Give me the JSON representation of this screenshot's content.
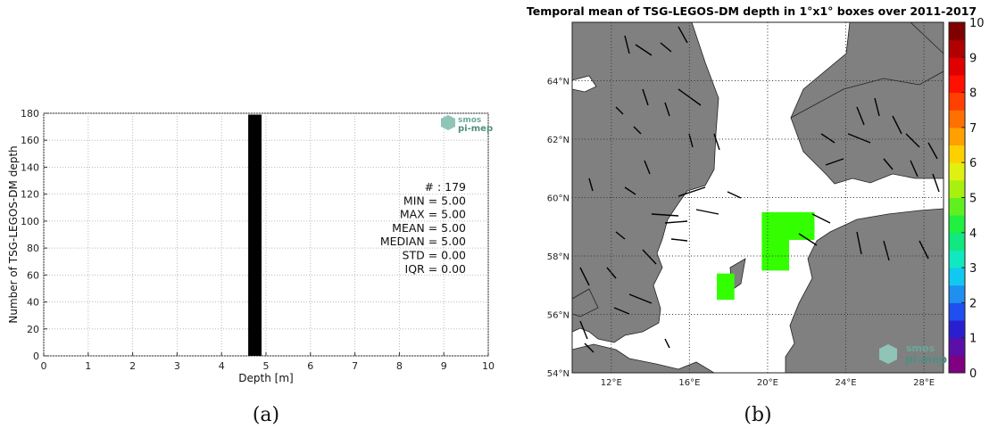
{
  "chart_data": [
    {
      "type": "bar",
      "panel_caption": "(a)",
      "xlabel": "Depth [m]",
      "ylabel": "Number of TSG-LEGOS-DM depth",
      "xlim": [
        0,
        10
      ],
      "ylim": [
        0,
        180
      ],
      "x_ticks": [
        "0",
        "1",
        "2",
        "3",
        "4",
        "5",
        "6",
        "7",
        "8",
        "9",
        "10"
      ],
      "y_ticks": [
        "0",
        "20",
        "40",
        "60",
        "80",
        "100",
        "120",
        "140",
        "160",
        "180"
      ],
      "grid": true,
      "bars": [
        {
          "x_start": 4.6,
          "x_end": 4.9,
          "value": 179
        }
      ],
      "bar_color": "#000000",
      "stats": [
        "# : 179",
        "MIN =  5.00",
        "MAX =  5.00",
        "MEAN = 5.00",
        "MEDIAN = 5.00",
        "STD = 0.00",
        "IQR = 0.00"
      ],
      "logo": {
        "line1": "smos",
        "line2": "pi-mep",
        "color": "#5fa393"
      }
    },
    {
      "type": "heatmap",
      "panel_caption": "(b)",
      "title": "Temporal mean of TSG-LEGOS-DM depth in 1°x1° boxes over 2011-2017",
      "lon_range": [
        10,
        29
      ],
      "lat_range": [
        54,
        66
      ],
      "lon_ticks": [
        "12°E",
        "16°E",
        "20°E",
        "24°E",
        "28°E"
      ],
      "lat_ticks": [
        "54°N",
        "56°N",
        "58°N",
        "60°N",
        "62°N",
        "64°N"
      ],
      "land_color": "#808080",
      "sea_color": "#ffffff",
      "colorbar_range": [
        0,
        10
      ],
      "colorbar_ticks": [
        "0",
        "1",
        "2",
        "3",
        "4",
        "5",
        "6",
        "7",
        "8",
        "9",
        "10"
      ],
      "colorbar_colors": [
        "#7f0080",
        "#5b0fa8",
        "#2a1fd0",
        "#1f4ff0",
        "#1f8ff0",
        "#10c8f0",
        "#10e8c0",
        "#10e880",
        "#20f040",
        "#60f020",
        "#a8f010",
        "#e0f010",
        "#ffd000",
        "#ffa000",
        "#ff7000",
        "#ff4000",
        "#ff1000",
        "#e00000",
        "#b00000",
        "#800000"
      ],
      "cells": [
        {
          "lon": [
            19.7,
            22.4
          ],
          "lat": [
            58.55,
            59.5
          ],
          "value": 5
        },
        {
          "lon": [
            19.7,
            21.1
          ],
          "lat": [
            57.5,
            58.55
          ],
          "value": 5
        },
        {
          "lon": [
            17.4,
            18.3
          ],
          "lat": [
            56.5,
            57.4
          ],
          "value": 5
        }
      ],
      "cell_color": "#33ff00",
      "logo": {
        "line1": "smos",
        "line2": "pi-mep",
        "color": "#5fa393"
      }
    }
  ]
}
